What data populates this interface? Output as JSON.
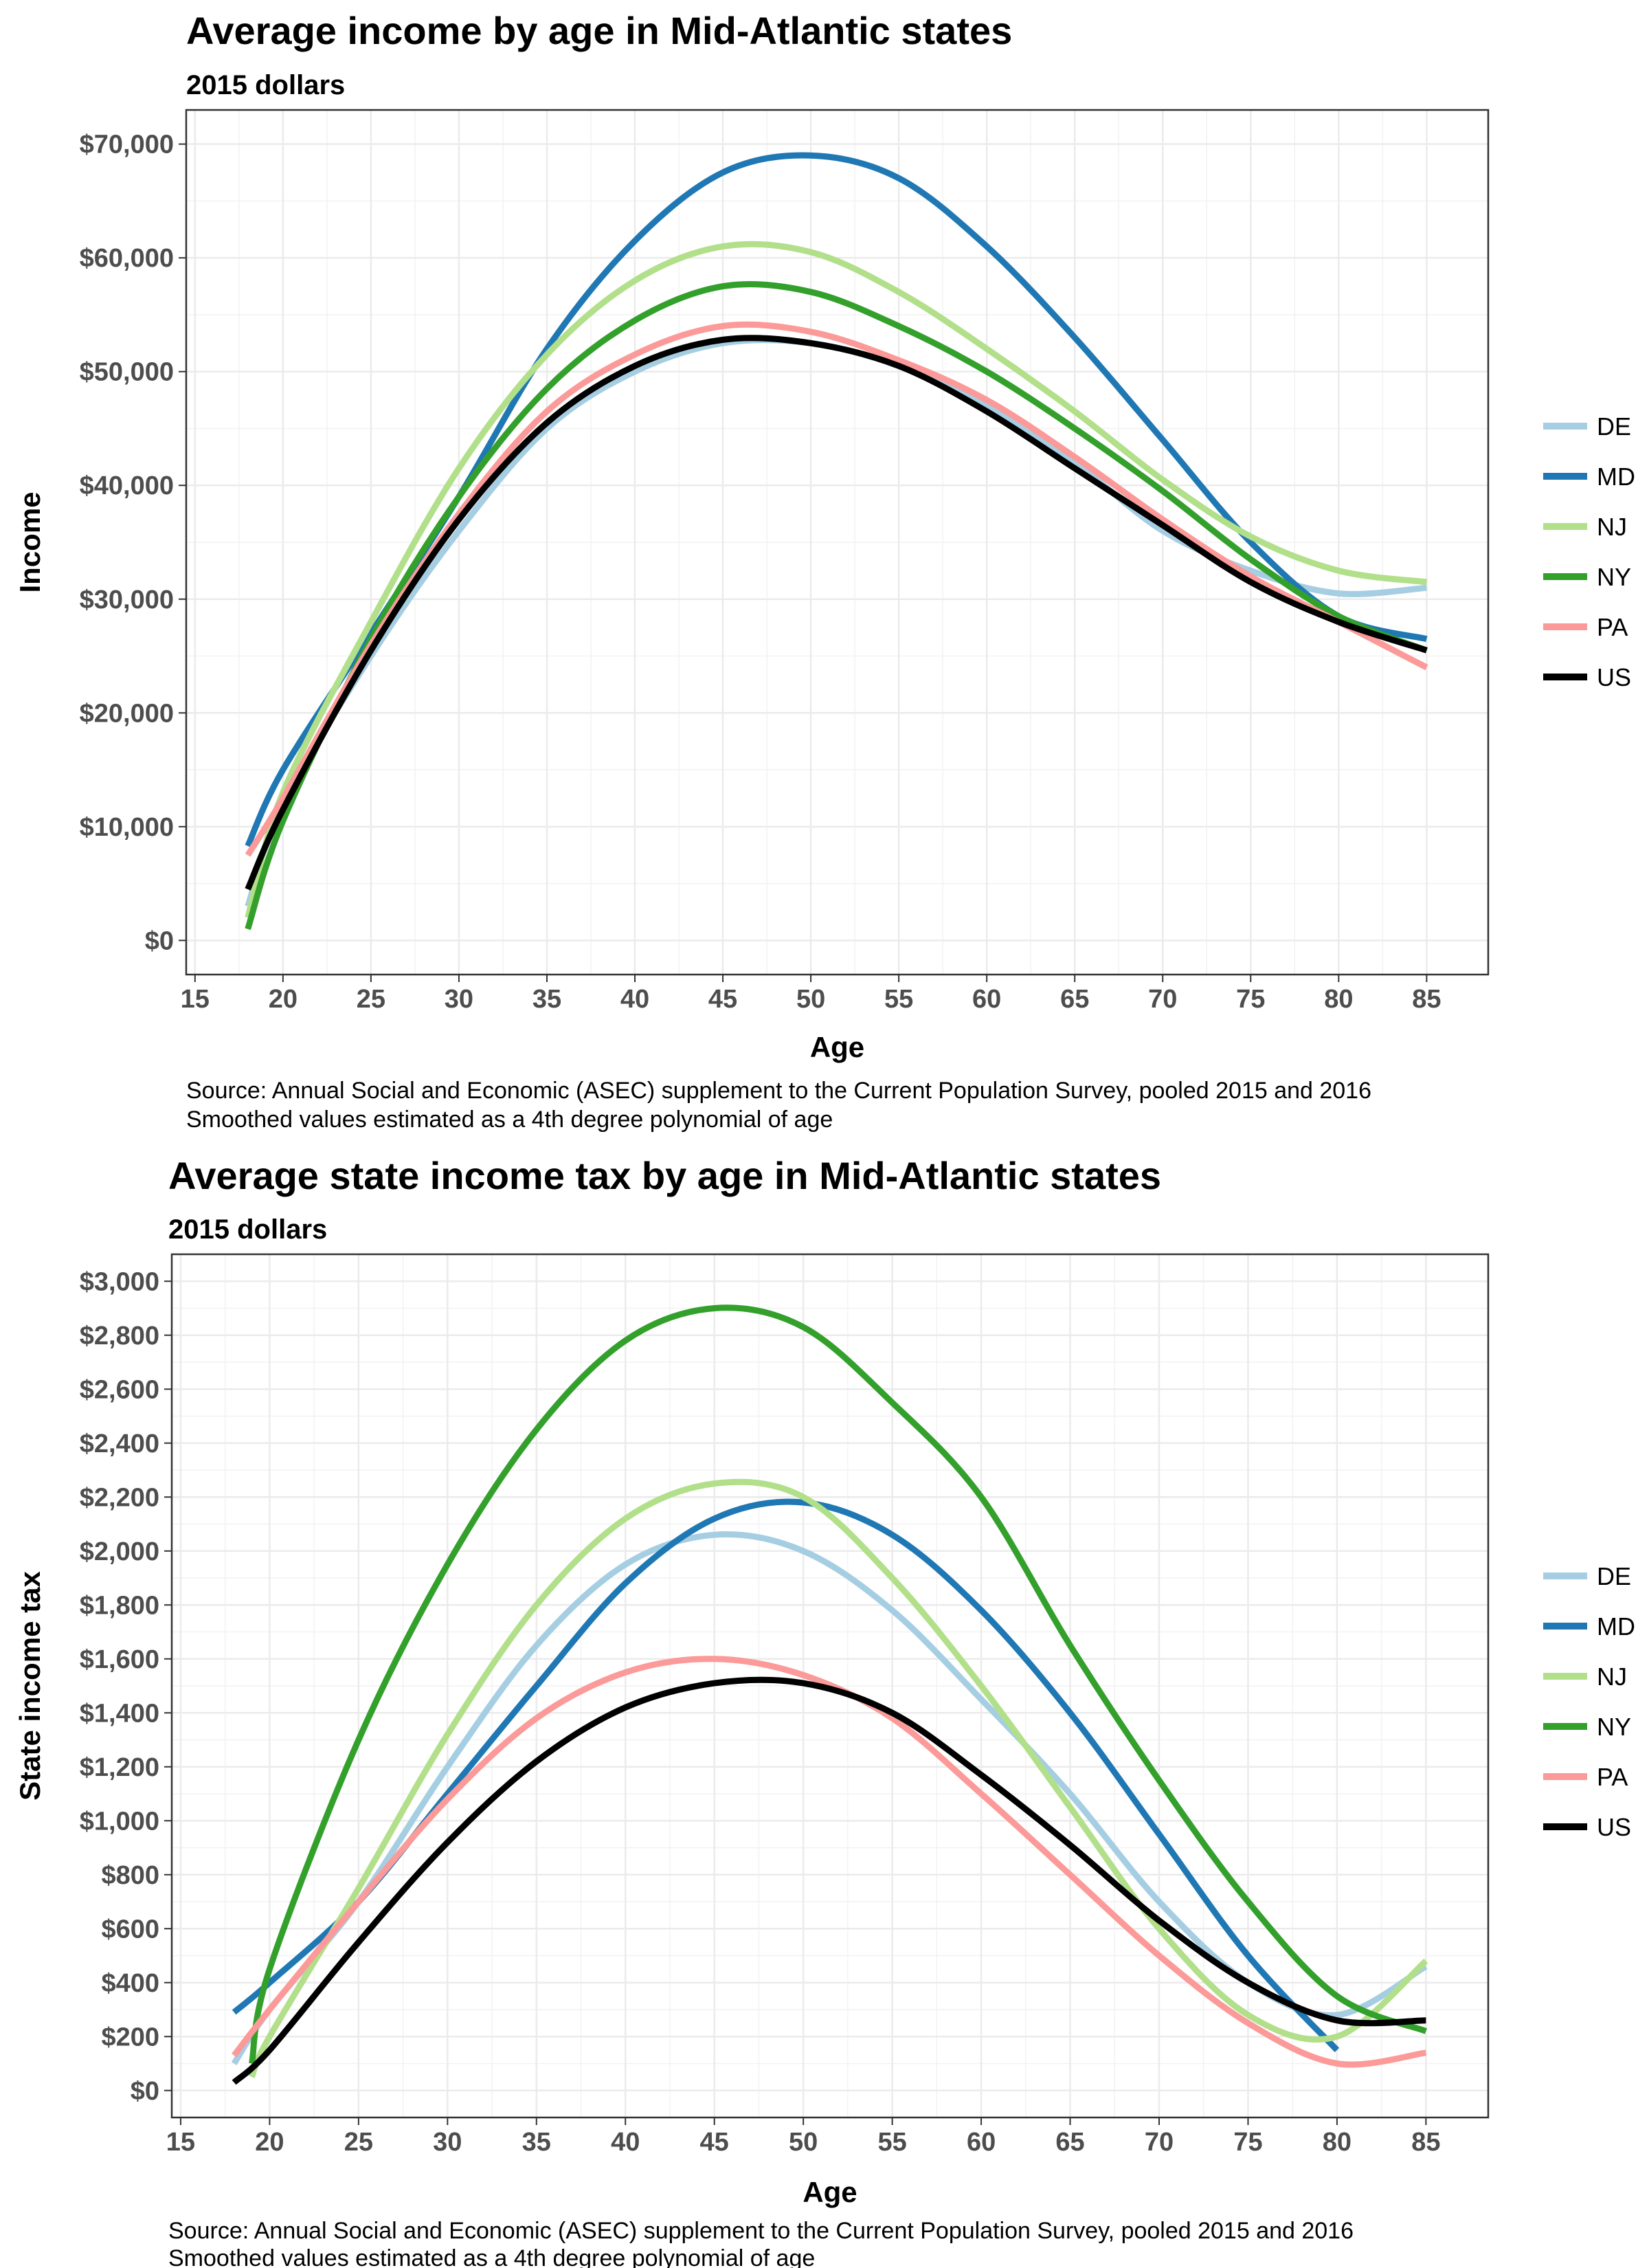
{
  "colors": {
    "DE": "#a6cee3",
    "MD": "#1f78b4",
    "NJ": "#b2df8a",
    "NY": "#33a02c",
    "PA": "#fb9a99",
    "US": "#000000"
  },
  "chart_data": [
    {
      "type": "line",
      "title": "Average income by age in Mid-Atlantic states",
      "subtitle": "2015 dollars",
      "xlabel": "Age",
      "ylabel": "Income",
      "xlim": [
        14.5,
        88.5
      ],
      "ylim": [
        -3000,
        73000
      ],
      "x_ticks": [
        15,
        20,
        25,
        30,
        35,
        40,
        45,
        50,
        55,
        60,
        65,
        70,
        75,
        80,
        85
      ],
      "x_tick_labels": [
        "15",
        "20",
        "25",
        "30",
        "35",
        "40",
        "45",
        "50",
        "55",
        "60",
        "65",
        "70",
        "75",
        "80",
        "85"
      ],
      "y_ticks": [
        0,
        10000,
        20000,
        30000,
        40000,
        50000,
        60000,
        70000
      ],
      "y_tick_labels": [
        "$0",
        "$10,000",
        "$20,000",
        "$30,000",
        "$40,000",
        "$50,000",
        "$60,000",
        "$70,000"
      ],
      "grid": true,
      "legend_position": "right",
      "x": [
        18,
        20,
        25,
        30,
        35,
        40,
        45,
        50,
        55,
        60,
        65,
        70,
        75,
        80,
        85
      ],
      "series": [
        {
          "name": "DE",
          "values": [
            3000,
            12000,
            25000,
            36000,
            45000,
            50000,
            52500,
            52500,
            50500,
            47000,
            42000,
            36000,
            32500,
            30500,
            31000
          ]
        },
        {
          "name": "MD",
          "values": [
            8300,
            15000,
            27000,
            39000,
            52000,
            61500,
            67500,
            69000,
            67000,
            61000,
            53000,
            44000,
            35000,
            28500,
            26500
          ]
        },
        {
          "name": "NJ",
          "values": [
            2000,
            13000,
            28000,
            41500,
            51500,
            58000,
            61000,
            60500,
            57000,
            52000,
            46500,
            40500,
            35500,
            32500,
            31500
          ]
        },
        {
          "name": "NY",
          "values": [
            1000,
            10500,
            26500,
            39000,
            48500,
            54500,
            57500,
            57000,
            54000,
            50000,
            45000,
            39500,
            33500,
            28500,
            25500
          ]
        },
        {
          "name": "PA",
          "values": [
            7500,
            12500,
            26000,
            37500,
            46500,
            51500,
            54000,
            53500,
            51000,
            47500,
            42500,
            37000,
            32000,
            28000,
            24000
          ]
        },
        {
          "name": "US",
          "values": [
            4500,
            11500,
            25500,
            37000,
            45500,
            50500,
            52800,
            52500,
            50500,
            46500,
            41500,
            36500,
            31500,
            28000,
            25500
          ]
        }
      ],
      "source": "Source: Annual Social and Economic (ASEC) supplement to the Current Population Survey, pooled 2015 and 2016",
      "note": "Smoothed values estimated as a 4th degree polynomial of age"
    },
    {
      "type": "line",
      "title": "Average state income tax by age in Mid-Atlantic states",
      "subtitle": "2015 dollars",
      "xlabel": "Age",
      "ylabel": "State income tax",
      "xlim": [
        14.5,
        88.5
      ],
      "ylim": [
        -100,
        3100
      ],
      "x_ticks": [
        15,
        20,
        25,
        30,
        35,
        40,
        45,
        50,
        55,
        60,
        65,
        70,
        75,
        80,
        85
      ],
      "x_tick_labels": [
        "15",
        "20",
        "25",
        "30",
        "35",
        "40",
        "45",
        "50",
        "55",
        "60",
        "65",
        "70",
        "75",
        "80",
        "85"
      ],
      "y_ticks": [
        0,
        200,
        400,
        600,
        800,
        1000,
        1200,
        1400,
        1600,
        1800,
        2000,
        2200,
        2400,
        2600,
        2800,
        3000
      ],
      "y_tick_labels": [
        "$0",
        "$200",
        "$400",
        "$600",
        "$800",
        "$1,000",
        "$1,200",
        "$1,400",
        "$1,600",
        "$1,800",
        "$2,000",
        "$2,200",
        "$2,400",
        "$2,600",
        "$2,800",
        "$3,000"
      ],
      "grid": true,
      "legend_position": "right",
      "series": [
        {
          "name": "DE",
          "x": [
            18,
            20,
            25,
            30,
            35,
            40,
            45,
            50,
            55,
            60,
            65,
            70,
            75,
            80,
            85
          ],
          "values": [
            100,
            300,
            700,
            1200,
            1650,
            1950,
            2060,
            2000,
            1780,
            1450,
            1100,
            700,
            400,
            280,
            460
          ]
        },
        {
          "name": "MD",
          "x": [
            18,
            20,
            25,
            30,
            35,
            40,
            45,
            50,
            55,
            60,
            65,
            70,
            75,
            80
          ],
          "values": [
            290,
            400,
            700,
            1100,
            1500,
            1880,
            2120,
            2180,
            2060,
            1780,
            1400,
            950,
            500,
            150
          ]
        },
        {
          "name": "NJ",
          "x": [
            19,
            20,
            25,
            30,
            35,
            40,
            45,
            50,
            55,
            60,
            65,
            70,
            75,
            80,
            85
          ],
          "values": [
            50,
            200,
            750,
            1320,
            1800,
            2120,
            2250,
            2200,
            1900,
            1500,
            1050,
            600,
            280,
            200,
            480
          ]
        },
        {
          "name": "NY",
          "x": [
            19,
            20,
            25,
            30,
            35,
            40,
            45,
            50,
            55,
            60,
            65,
            70,
            75,
            80,
            85
          ],
          "values": [
            100,
            450,
            1300,
            1950,
            2450,
            2780,
            2900,
            2830,
            2550,
            2200,
            1650,
            1150,
            700,
            350,
            220
          ]
        },
        {
          "name": "PA",
          "x": [
            18,
            20,
            25,
            30,
            35,
            40,
            45,
            50,
            55,
            60,
            65,
            70,
            75,
            80,
            85
          ],
          "values": [
            130,
            300,
            700,
            1080,
            1380,
            1550,
            1600,
            1540,
            1380,
            1100,
            800,
            500,
            250,
            100,
            140
          ]
        },
        {
          "name": "US",
          "x": [
            18,
            20,
            25,
            30,
            35,
            40,
            45,
            50,
            55,
            60,
            65,
            70,
            75,
            80,
            85
          ],
          "values": [
            30,
            150,
            550,
            920,
            1220,
            1420,
            1510,
            1510,
            1400,
            1170,
            910,
            630,
            400,
            260,
            260
          ]
        }
      ],
      "source": "Source: Annual Social and Economic (ASEC) supplement to the Current Population Survey, pooled 2015 and 2016",
      "note": "Smoothed values estimated as a 4th degree polynomial of age"
    }
  ]
}
